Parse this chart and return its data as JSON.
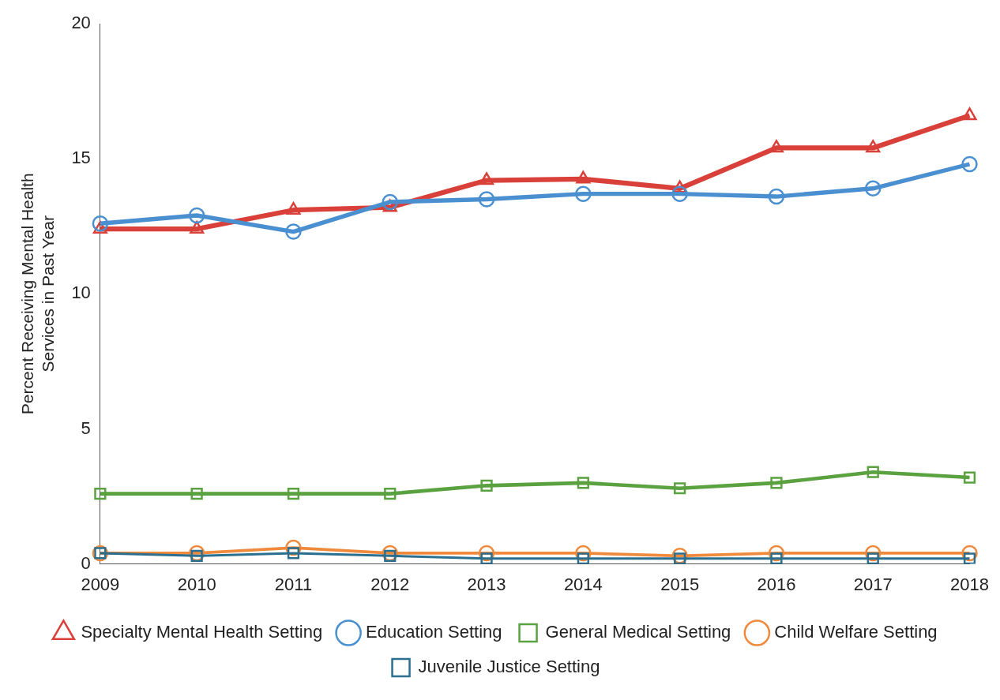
{
  "chart_data": {
    "type": "line",
    "ylabel": "Percent Receiving Mental Health\nServices in Past Year",
    "categories": [
      "2009",
      "2010",
      "2011",
      "2012",
      "2013",
      "2014",
      "2015",
      "2016",
      "2017",
      "2018"
    ],
    "series": [
      {
        "name": "Specialty Mental Health Setting",
        "color": "#d9403a",
        "marker": "triangle",
        "values": [
          12.4,
          12.4,
          13.1,
          13.2,
          14.2,
          14.25,
          13.9,
          15.4,
          15.4,
          16.6
        ]
      },
      {
        "name": "Education Setting",
        "color": "#4a90d0",
        "marker": "circle",
        "values": [
          12.6,
          12.9,
          12.3,
          13.4,
          13.5,
          13.7,
          13.7,
          13.6,
          13.9,
          14.8
        ]
      },
      {
        "name": "General Medical Setting",
        "color": "#5aa13f",
        "marker": "square",
        "values": [
          2.6,
          2.6,
          2.6,
          2.6,
          2.9,
          3.0,
          2.8,
          3.0,
          3.4,
          3.2
        ]
      },
      {
        "name": "Child Welfare Setting",
        "color": "#ef8a3c",
        "marker": "circle",
        "values": [
          0.4,
          0.4,
          0.6,
          0.4,
          0.4,
          0.4,
          0.3,
          0.4,
          0.4,
          0.4
        ]
      },
      {
        "name": "Juvenile Justice Setting",
        "color": "#2a6f8f",
        "marker": "square",
        "values": [
          0.4,
          0.3,
          0.4,
          0.3,
          0.2,
          0.2,
          0.2,
          0.2,
          0.2,
          0.2
        ]
      }
    ],
    "ylim": [
      0,
      20
    ],
    "yticks": [
      0,
      5,
      10,
      15,
      20
    ],
    "grid": false,
    "legend": "bottom",
    "line_style": "solid"
  }
}
